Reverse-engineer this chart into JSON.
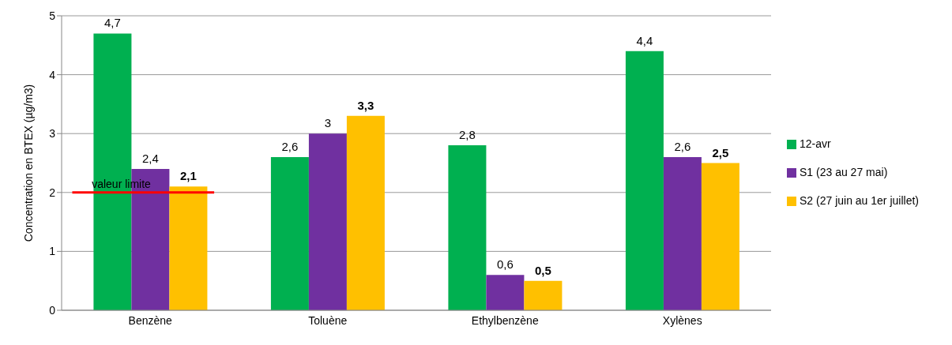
{
  "chart_data": {
    "type": "bar",
    "ylabel": "Concentration en BTEX (µg/m3)",
    "categories": [
      "Benzène",
      "Toluène",
      "Ethylbenzène",
      "Xylènes"
    ],
    "series": [
      {
        "name": "12-avr",
        "color": "#00b050",
        "values": [
          4.7,
          2.6,
          2.8,
          4.4
        ],
        "value_labels": [
          "4,7",
          "2,6",
          "2,8",
          "4,4"
        ]
      },
      {
        "name": "S1 (23 au 27 mai)",
        "color": "#7030a0",
        "values": [
          2.4,
          3,
          0.6,
          2.6
        ],
        "value_labels": [
          "2,4",
          "3",
          "0,6",
          "2,6"
        ]
      },
      {
        "name": "S2 (27 juin au 1er juillet)",
        "color": "#ffc000",
        "values": [
          2.1,
          3.3,
          0.5,
          2.5
        ],
        "value_labels": [
          "2,1",
          "3,3",
          "0,5",
          "2,5"
        ]
      }
    ],
    "ylim": [
      0,
      5
    ],
    "yticks": [
      0,
      1,
      2,
      3,
      4,
      5
    ],
    "grid": "y",
    "legend": "right",
    "ref_lines": [
      {
        "axis": "y",
        "value": 2,
        "label": "valeur limite",
        "color": "#ff0000"
      }
    ]
  }
}
